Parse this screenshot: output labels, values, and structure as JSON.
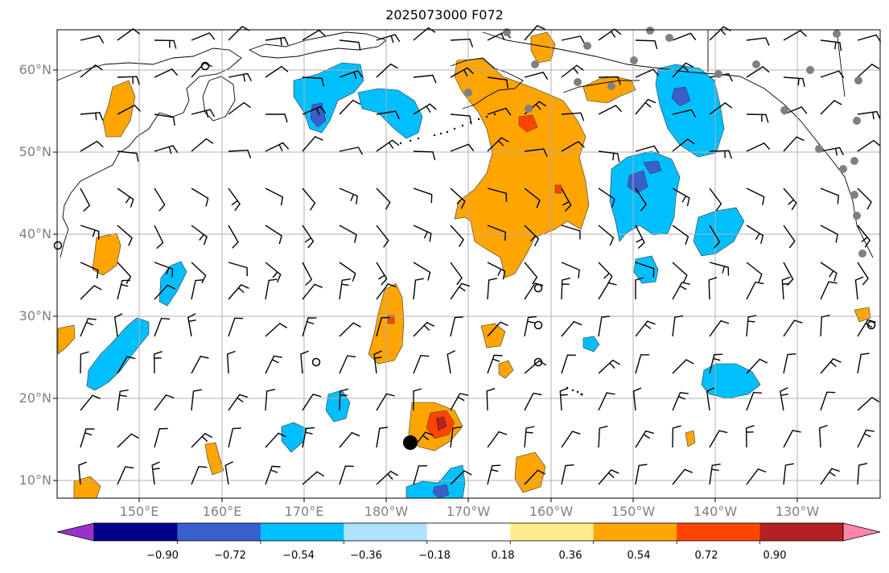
{
  "title": "2025073000 F072",
  "map": {
    "lat_labels": [
      "60°N",
      "50°N",
      "40°N",
      "30°N",
      "20°N",
      "10°N"
    ],
    "lon_labels": [
      "150°E",
      "160°E",
      "170°E",
      "180°W",
      "170°W",
      "160°W",
      "150°W",
      "140°W",
      "130°W"
    ]
  },
  "colorbar": {
    "ticks": [
      "−0.90",
      "−0.72",
      "−0.54",
      "−0.36",
      "−0.18",
      "0.18",
      "0.36",
      "0.54",
      "0.72",
      "0.90"
    ],
    "colors": [
      "#9932cc",
      "#00008b",
      "#3a5fcd",
      "#00bfff",
      "#b0e2ff",
      "#ffffff",
      "#ffec8b",
      "#ffa500",
      "#ff4500",
      "#b22222",
      "#ff88aa"
    ]
  },
  "colors": {
    "positive_main": "#ffa500",
    "positive_strong": "#ff4500",
    "positive_max": "#b22222",
    "negative_main": "#00bfff",
    "negative_strong": "#3a5fcd",
    "grid": "#b0b0b0",
    "marker_gray": "#808080"
  }
}
